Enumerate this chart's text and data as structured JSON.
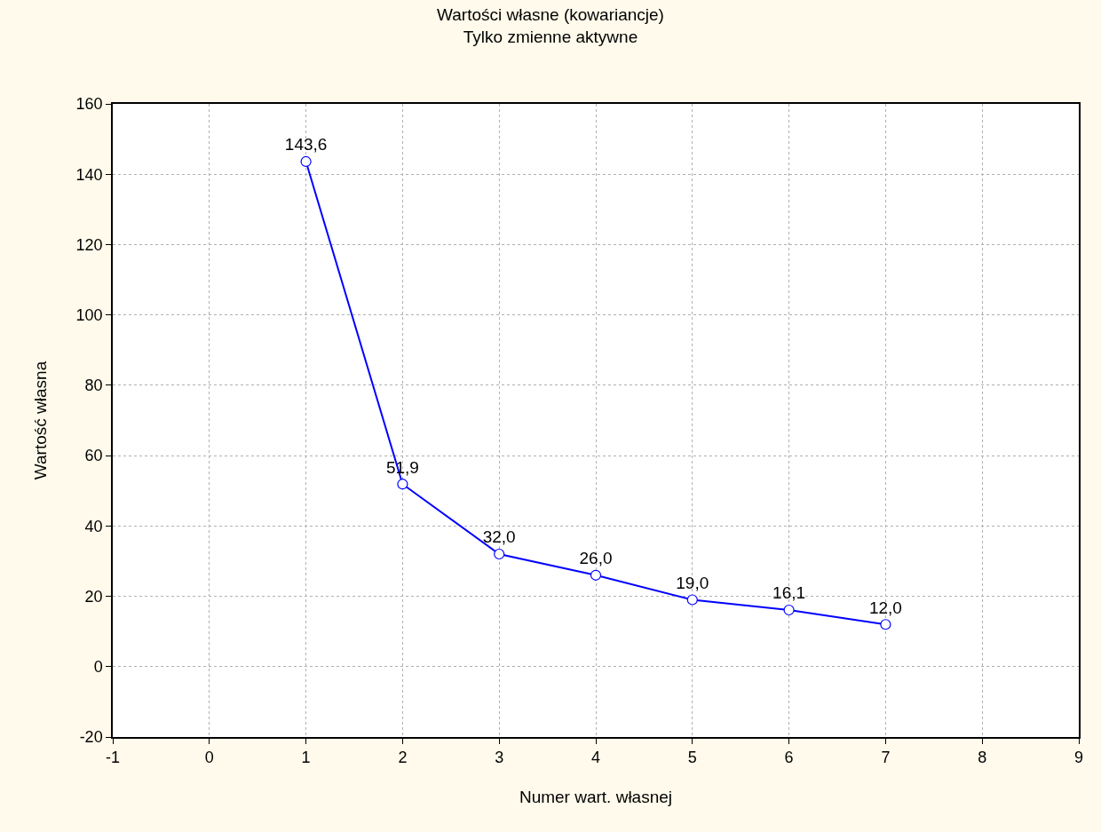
{
  "chart_data": {
    "type": "line",
    "title": "Wartości własne (kowariancje)",
    "subtitle": "Tylko zmienne aktywne",
    "xlabel": "Numer wart. własnej",
    "ylabel": "Wartość własna",
    "x": [
      1,
      2,
      3,
      4,
      5,
      6,
      7
    ],
    "series": [
      {
        "color": "#0000ff",
        "values": [
          143.6,
          51.9,
          32.0,
          26.0,
          19.0,
          16.1,
          12.0
        ],
        "value_labels": [
          "143,6",
          "51,9",
          "32,0",
          "26,0",
          "19,0",
          "16,1",
          "12,0"
        ]
      }
    ],
    "xlim": [
      -1,
      9
    ],
    "xticks": [
      -1,
      0,
      1,
      2,
      3,
      4,
      5,
      6,
      7,
      8,
      9
    ],
    "ylim": [
      -20,
      160
    ],
    "yticks": [
      -20,
      0,
      20,
      40,
      60,
      80,
      100,
      120,
      140,
      160
    ],
    "grid": true,
    "marker": "circle",
    "line_style": "solid"
  }
}
